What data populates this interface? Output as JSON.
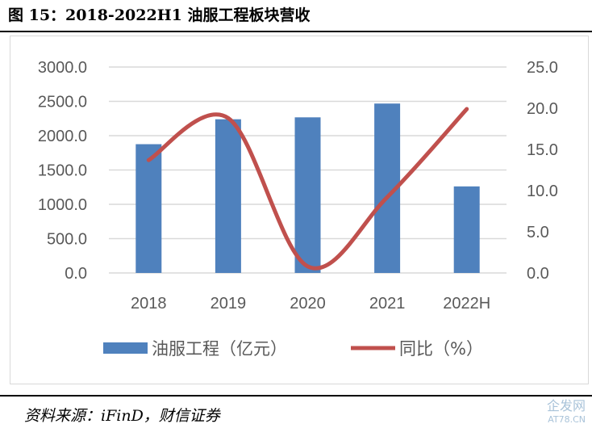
{
  "title": "图 15：2018-2022H1 油服工程板块营收",
  "source": "资料来源：iFinD，财信证券",
  "watermark": {
    "line1": "企发网",
    "line2": "AT78.CN"
  },
  "chart_data": {
    "type": "bar+line",
    "categories": [
      "2018",
      "2019",
      "2020",
      "2021",
      "2022H"
    ],
    "series": [
      {
        "name": "油服工程（亿元）",
        "type": "bar",
        "axis": "left",
        "color": "#4f81bd",
        "values": [
          1876,
          2239,
          2267,
          2468,
          1261
        ]
      },
      {
        "name": "同比（%）",
        "type": "line",
        "axis": "right",
        "color": "#c0504d",
        "values": [
          13.7,
          18.8,
          0.8,
          9.2,
          19.9
        ]
      }
    ],
    "left_axis": {
      "ylim": [
        0,
        3000
      ],
      "ticks": [
        "0.0",
        "500.0",
        "1000.0",
        "1500.0",
        "2000.0",
        "2500.0",
        "3000.0"
      ]
    },
    "right_axis": {
      "ylim": [
        0,
        25
      ],
      "ticks": [
        "0.0",
        "5.0",
        "10.0",
        "15.0",
        "20.0",
        "25.0"
      ]
    },
    "grid": true,
    "legend": "bottom"
  }
}
